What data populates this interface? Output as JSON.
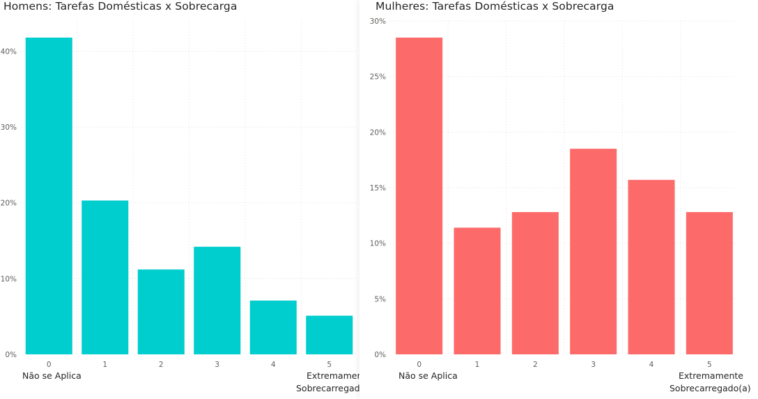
{
  "chart_data": [
    {
      "type": "bar",
      "title": "Homens: Tarefas Domésticas x Sobrecarga",
      "categories": [
        "0",
        "1",
        "2",
        "3",
        "4",
        "5"
      ],
      "values": [
        41.8,
        20.3,
        11.2,
        14.2,
        7.1,
        5.1
      ],
      "value_unit": "%",
      "ylim": [
        0,
        44
      ],
      "yticks": [
        0,
        10,
        20,
        30,
        40
      ],
      "ytick_labels": [
        "0%",
        "10%",
        "20%",
        "30%",
        "40%"
      ],
      "xlabel_start": "Não se Aplica",
      "xlabel_end_line1": "Extremamente",
      "xlabel_end_line2": "Sobrecarregado(a)",
      "grid": true,
      "color": "#00CDCD"
    },
    {
      "type": "bar",
      "title": "Mulheres: Tarefas Domésticas x Sobrecarga",
      "categories": [
        "0",
        "1",
        "2",
        "3",
        "4",
        "5"
      ],
      "values": [
        28.5,
        11.4,
        12.8,
        18.5,
        15.7,
        12.8
      ],
      "value_unit": "%",
      "ylim": [
        0,
        30
      ],
      "yticks": [
        0,
        5,
        10,
        15,
        20,
        25,
        30
      ],
      "ytick_labels": [
        "0%",
        "5%",
        "10%",
        "15%",
        "20%",
        "25%",
        "30%"
      ],
      "xlabel_start": "Não se Aplica",
      "xlabel_end_line1": "Extremamente",
      "xlabel_end_line2": "Sobrecarregado(a)",
      "grid": true,
      "color": "#FD6A6A"
    }
  ]
}
